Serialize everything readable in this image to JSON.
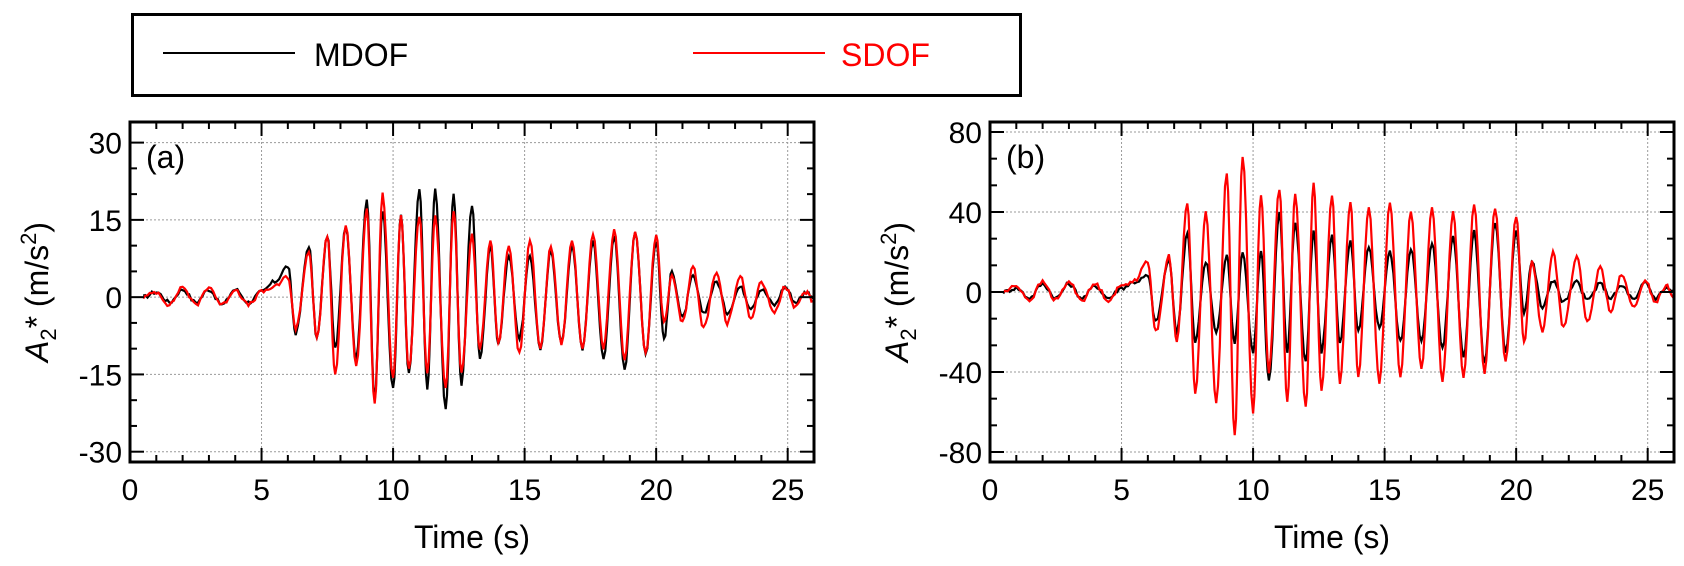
{
  "legend": {
    "mdof_label": "MDOF",
    "sdof_label": "SDOF",
    "mdof_color": "#000000",
    "sdof_color": "#ff0000"
  },
  "chart_data": [
    {
      "type": "line",
      "panel_label": "(a)",
      "xlabel": "Time (s)",
      "ylabel": "A2* (m/s2)",
      "xlim": [
        0,
        26
      ],
      "ylim": [
        -32,
        34
      ],
      "xticks": [
        0,
        5,
        10,
        15,
        20,
        25
      ],
      "yticks": [
        -30,
        -15,
        0,
        15,
        30
      ],
      "grid": true,
      "series": [
        {
          "name": "MDOF",
          "color": "#000000",
          "peaks": [
            [
              0.5,
              0
            ],
            [
              1.0,
              1
            ],
            [
              1.5,
              -1
            ],
            [
              2.0,
              1.5
            ],
            [
              2.5,
              -1
            ],
            [
              3.0,
              1.5
            ],
            [
              3.5,
              -1.5
            ],
            [
              4.0,
              1.5
            ],
            [
              4.5,
              -1
            ],
            [
              5.0,
              1
            ],
            [
              5.5,
              3
            ],
            [
              6.0,
              6
            ],
            [
              6.3,
              -7
            ],
            [
              6.8,
              10
            ],
            [
              7.1,
              -8
            ],
            [
              7.5,
              12
            ],
            [
              7.8,
              -10
            ],
            [
              8.2,
              14
            ],
            [
              8.6,
              -12
            ],
            [
              9.0,
              19
            ],
            [
              9.3,
              -20
            ],
            [
              9.6,
              17
            ],
            [
              10.0,
              -18
            ],
            [
              10.3,
              16
            ],
            [
              10.6,
              -15
            ],
            [
              11.0,
              21
            ],
            [
              11.3,
              -18
            ],
            [
              11.6,
              21
            ],
            [
              12.0,
              -22
            ],
            [
              12.3,
              20
            ],
            [
              12.6,
              -17
            ],
            [
              13.0,
              18
            ],
            [
              13.3,
              -12
            ],
            [
              13.7,
              10
            ],
            [
              14.0,
              -9
            ],
            [
              14.4,
              8
            ],
            [
              14.8,
              -8
            ],
            [
              15.2,
              8
            ],
            [
              15.6,
              -10
            ],
            [
              16.0,
              9
            ],
            [
              16.4,
              -9
            ],
            [
              16.8,
              10
            ],
            [
              17.2,
              -10
            ],
            [
              17.6,
              11
            ],
            [
              18.0,
              -12
            ],
            [
              18.4,
              12
            ],
            [
              18.8,
              -14
            ],
            [
              19.2,
              13
            ],
            [
              19.6,
              -11
            ],
            [
              20.0,
              11
            ],
            [
              20.3,
              -8
            ],
            [
              20.6,
              5
            ],
            [
              21.0,
              -4
            ],
            [
              21.4,
              4
            ],
            [
              21.8,
              -3
            ],
            [
              22.3,
              3
            ],
            [
              22.7,
              -3
            ],
            [
              23.2,
              2
            ],
            [
              23.6,
              -2
            ],
            [
              24.0,
              1.5
            ],
            [
              24.5,
              -1.5
            ],
            [
              24.9,
              2
            ],
            [
              25.3,
              -1
            ],
            [
              25.7,
              1
            ],
            [
              26.0,
              0
            ]
          ]
        },
        {
          "name": "SDOF",
          "color": "#ff0000",
          "peaks": [
            [
              0.5,
              0
            ],
            [
              1.0,
              1
            ],
            [
              1.5,
              -1.5
            ],
            [
              2.0,
              2
            ],
            [
              2.5,
              -1.5
            ],
            [
              3.0,
              2
            ],
            [
              3.5,
              -1.5
            ],
            [
              4.0,
              1.5
            ],
            [
              4.5,
              -1.5
            ],
            [
              5.0,
              1
            ],
            [
              5.5,
              2
            ],
            [
              6.0,
              4
            ],
            [
              6.3,
              -6
            ],
            [
              6.8,
              9
            ],
            [
              7.1,
              -8
            ],
            [
              7.5,
              12
            ],
            [
              7.8,
              -15
            ],
            [
              8.2,
              14
            ],
            [
              8.6,
              -13
            ],
            [
              9.0,
              17
            ],
            [
              9.3,
              -21
            ],
            [
              9.6,
              20
            ],
            [
              10.0,
              -16
            ],
            [
              10.3,
              16
            ],
            [
              10.6,
              -14
            ],
            [
              11.0,
              16
            ],
            [
              11.3,
              -15
            ],
            [
              11.6,
              16
            ],
            [
              12.0,
              -18
            ],
            [
              12.3,
              17
            ],
            [
              12.6,
              -15
            ],
            [
              13.0,
              12
            ],
            [
              13.3,
              -10
            ],
            [
              13.7,
              11
            ],
            [
              14.0,
              -9
            ],
            [
              14.4,
              10
            ],
            [
              14.8,
              -11
            ],
            [
              15.2,
              11
            ],
            [
              15.6,
              -10
            ],
            [
              16.0,
              10
            ],
            [
              16.4,
              -9
            ],
            [
              16.8,
              11
            ],
            [
              17.2,
              -10
            ],
            [
              17.6,
              12
            ],
            [
              18.0,
              -10
            ],
            [
              18.4,
              13
            ],
            [
              18.8,
              -12
            ],
            [
              19.2,
              13
            ],
            [
              19.6,
              -11
            ],
            [
              20.0,
              12
            ],
            [
              20.3,
              -5
            ],
            [
              20.6,
              4
            ],
            [
              21.0,
              -5
            ],
            [
              21.4,
              6
            ],
            [
              21.8,
              -6
            ],
            [
              22.3,
              5
            ],
            [
              22.7,
              -5
            ],
            [
              23.2,
              4
            ],
            [
              23.6,
              -4
            ],
            [
              24.0,
              3
            ],
            [
              24.5,
              -3
            ],
            [
              24.9,
              2
            ],
            [
              25.3,
              -2
            ],
            [
              25.7,
              1
            ],
            [
              26.0,
              -1
            ]
          ]
        }
      ]
    },
    {
      "type": "line",
      "panel_label": "(b)",
      "xlabel": "Time (s)",
      "ylabel": "A2* (m/s2)",
      "xlim": [
        0,
        26
      ],
      "ylim": [
        -85,
        85
      ],
      "xticks": [
        0,
        5,
        10,
        15,
        20,
        25
      ],
      "yticks": [
        -80,
        -40,
        0,
        40,
        80
      ],
      "grid": true,
      "series": [
        {
          "name": "MDOF",
          "color": "#000000",
          "peaks": [
            [
              0.5,
              0
            ],
            [
              1.0,
              2
            ],
            [
              1.5,
              -3
            ],
            [
              2.0,
              4
            ],
            [
              2.5,
              -3
            ],
            [
              3.0,
              4
            ],
            [
              3.5,
              -3
            ],
            [
              4.0,
              3
            ],
            [
              4.5,
              -3
            ],
            [
              5.0,
              2
            ],
            [
              5.5,
              5
            ],
            [
              6.0,
              8
            ],
            [
              6.3,
              -15
            ],
            [
              6.8,
              16
            ],
            [
              7.1,
              -20
            ],
            [
              7.5,
              30
            ],
            [
              7.8,
              -25
            ],
            [
              8.2,
              15
            ],
            [
              8.6,
              -20
            ],
            [
              9.0,
              18
            ],
            [
              9.3,
              -25
            ],
            [
              9.6,
              20
            ],
            [
              10.0,
              -30
            ],
            [
              10.3,
              20
            ],
            [
              10.6,
              -44
            ],
            [
              11.0,
              40
            ],
            [
              11.3,
              -30
            ],
            [
              11.6,
              35
            ],
            [
              12.0,
              -35
            ],
            [
              12.3,
              30
            ],
            [
              12.6,
              -30
            ],
            [
              13.0,
              28
            ],
            [
              13.3,
              -25
            ],
            [
              13.7,
              25
            ],
            [
              14.0,
              -20
            ],
            [
              14.4,
              22
            ],
            [
              14.8,
              -18
            ],
            [
              15.2,
              20
            ],
            [
              15.6,
              -25
            ],
            [
              16.0,
              22
            ],
            [
              16.4,
              -25
            ],
            [
              16.8,
              25
            ],
            [
              17.2,
              -28
            ],
            [
              17.6,
              28
            ],
            [
              18.0,
              -32
            ],
            [
              18.4,
              30
            ],
            [
              18.8,
              -35
            ],
            [
              19.2,
              35
            ],
            [
              19.6,
              -30
            ],
            [
              20.0,
              30
            ],
            [
              20.3,
              -10
            ],
            [
              20.6,
              15
            ],
            [
              21.0,
              -8
            ],
            [
              21.4,
              6
            ],
            [
              21.8,
              -5
            ],
            [
              22.3,
              5
            ],
            [
              22.7,
              -4
            ],
            [
              23.2,
              4
            ],
            [
              23.6,
              -3
            ],
            [
              24.0,
              3
            ],
            [
              24.5,
              -4
            ],
            [
              24.9,
              5
            ],
            [
              25.3,
              -3
            ],
            [
              25.7,
              2
            ],
            [
              26.0,
              0
            ]
          ]
        },
        {
          "name": "SDOF",
          "color": "#ff0000",
          "peaks": [
            [
              0.5,
              0
            ],
            [
              1.0,
              3
            ],
            [
              1.5,
              -4
            ],
            [
              2.0,
              5
            ],
            [
              2.5,
              -4
            ],
            [
              3.0,
              5
            ],
            [
              3.5,
              -4
            ],
            [
              4.0,
              4
            ],
            [
              4.5,
              -4
            ],
            [
              5.0,
              3
            ],
            [
              5.5,
              6
            ],
            [
              6.0,
              15
            ],
            [
              6.3,
              -20
            ],
            [
              6.8,
              18
            ],
            [
              7.1,
              -25
            ],
            [
              7.5,
              45
            ],
            [
              7.8,
              -50
            ],
            [
              8.2,
              40
            ],
            [
              8.6,
              -55
            ],
            [
              9.0,
              60
            ],
            [
              9.3,
              -72
            ],
            [
              9.6,
              68
            ],
            [
              10.0,
              -60
            ],
            [
              10.3,
              48
            ],
            [
              10.6,
              -40
            ],
            [
              11.0,
              52
            ],
            [
              11.3,
              -55
            ],
            [
              11.6,
              50
            ],
            [
              12.0,
              -58
            ],
            [
              12.3,
              55
            ],
            [
              12.6,
              -50
            ],
            [
              13.0,
              48
            ],
            [
              13.3,
              -45
            ],
            [
              13.7,
              45
            ],
            [
              14.0,
              -42
            ],
            [
              14.4,
              42
            ],
            [
              14.8,
              -45
            ],
            [
              15.2,
              44
            ],
            [
              15.6,
              -42
            ],
            [
              16.0,
              40
            ],
            [
              16.4,
              -38
            ],
            [
              16.8,
              42
            ],
            [
              17.2,
              -44
            ],
            [
              17.6,
              40
            ],
            [
              18.0,
              -42
            ],
            [
              18.4,
              44
            ],
            [
              18.8,
              -40
            ],
            [
              19.2,
              42
            ],
            [
              19.6,
              -35
            ],
            [
              20.0,
              38
            ],
            [
              20.3,
              -25
            ],
            [
              20.6,
              15
            ],
            [
              21.0,
              -20
            ],
            [
              21.4,
              20
            ],
            [
              21.8,
              -18
            ],
            [
              22.3,
              18
            ],
            [
              22.7,
              -15
            ],
            [
              23.2,
              12
            ],
            [
              23.6,
              -10
            ],
            [
              24.0,
              8
            ],
            [
              24.5,
              -8
            ],
            [
              24.9,
              6
            ],
            [
              25.3,
              -5
            ],
            [
              25.7,
              3
            ],
            [
              26.0,
              -2
            ]
          ]
        }
      ]
    }
  ]
}
